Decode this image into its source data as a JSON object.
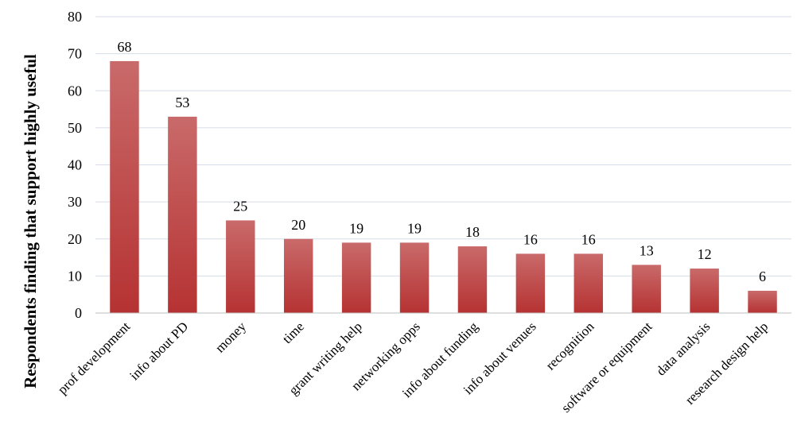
{
  "chart_data": {
    "type": "bar",
    "title": "",
    "xlabel": "",
    "ylabel": "Respondents finding that support highly useful",
    "categories": [
      "prof development",
      "info about PD",
      "money",
      "time",
      "grant writing help",
      "networking opps",
      "info about funding",
      "info about venues",
      "recognition",
      "software or equipment",
      "data analysis",
      "research design help"
    ],
    "values": [
      68,
      53,
      25,
      20,
      19,
      19,
      18,
      16,
      16,
      13,
      12,
      6
    ],
    "ylim": [
      0,
      80
    ],
    "yticks": [
      0,
      10,
      20,
      30,
      40,
      50,
      60,
      70,
      80
    ],
    "grid": true,
    "legend": "none",
    "data_labels": true,
    "colors": {
      "bar_top": "#c96a6a",
      "bar_bottom": "#b63232",
      "grid": "#d6dde8"
    }
  }
}
